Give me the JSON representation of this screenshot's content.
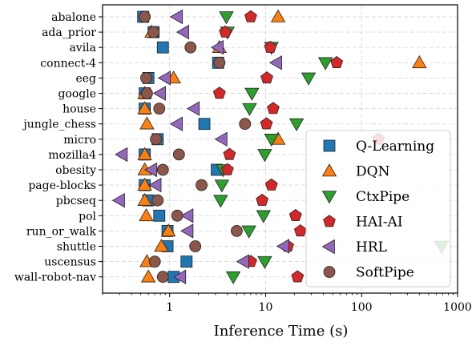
{
  "chart_data": {
    "type": "scatter",
    "title": "",
    "xlabel": "Inference Time (s)",
    "ylabel": "",
    "x_scale": "log",
    "xlim": [
      0.2,
      1000
    ],
    "x_ticks": [
      1,
      10,
      100,
      1000
    ],
    "x_tick_labels": [
      "1",
      "10",
      "100",
      "1000"
    ],
    "grid": true,
    "legend_position": "lower-right",
    "categories": [
      "abalone",
      "ada_prior",
      "avila",
      "connect-4",
      "eeg",
      "google",
      "house",
      "jungle_chess",
      "micro",
      "mozilla4",
      "obesity",
      "page-blocks",
      "pbcseq",
      "pol",
      "run_or_walk",
      "shuttle",
      "uscensus",
      "wall-robot-nav"
    ],
    "series": [
      {
        "name": "Q-Learning",
        "marker": "square",
        "color": "#1f77b4",
        "values": [
          0.53,
          0.68,
          0.85,
          3.2,
          0.6,
          0.55,
          0.55,
          2.3,
          0.75,
          0.55,
          3.1,
          0.55,
          0.6,
          0.78,
          0.95,
          0.95,
          1.5,
          1.1
        ]
      },
      {
        "name": "DQN",
        "marker": "triangle-up",
        "color": "#ff7f0e",
        "values": [
          13.5,
          0.65,
          3.3,
          400,
          1.1,
          0.55,
          0.55,
          0.58,
          13.5,
          0.55,
          0.55,
          0.55,
          0.55,
          0.57,
          0.97,
          0.82,
          0.58,
          0.6
        ]
      },
      {
        "name": "CtxPipe",
        "marker": "triangle-down",
        "color": "#2ca02c",
        "values": [
          3.9,
          4.0,
          11.5,
          42,
          28,
          7.2,
          6.8,
          21,
          11.5,
          9.8,
          3.6,
          3.5,
          3.4,
          9.5,
          6.7,
          680,
          9.8,
          4.6
        ]
      },
      {
        "name": "HAI-AI",
        "marker": "pentagon",
        "color": "#d62728",
        "values": [
          7.0,
          3.8,
          11.2,
          55,
          10.3,
          3.3,
          12.0,
          10.2,
          150,
          4.2,
          4.0,
          11.5,
          9.2,
          20.5,
          23,
          17,
          7.0,
          21.5
        ]
      },
      {
        "name": "HRL",
        "marker": "triangle-left",
        "color": "#9467bd",
        "values": [
          1.2,
          1.4,
          3.2,
          13,
          0.9,
          0.8,
          1.8,
          1.2,
          3.5,
          0.32,
          0.65,
          0.72,
          0.3,
          1.55,
          1.55,
          15.5,
          5.9,
          1.3
        ]
      },
      {
        "name": "SoftPipe",
        "marker": "circle",
        "color": "#8c564b",
        "values": [
          0.55,
          0.68,
          1.65,
          3.3,
          0.57,
          0.58,
          0.78,
          6.1,
          0.72,
          1.25,
          0.85,
          2.15,
          0.75,
          1.2,
          5.0,
          1.85,
          0.7,
          0.85
        ]
      }
    ]
  }
}
